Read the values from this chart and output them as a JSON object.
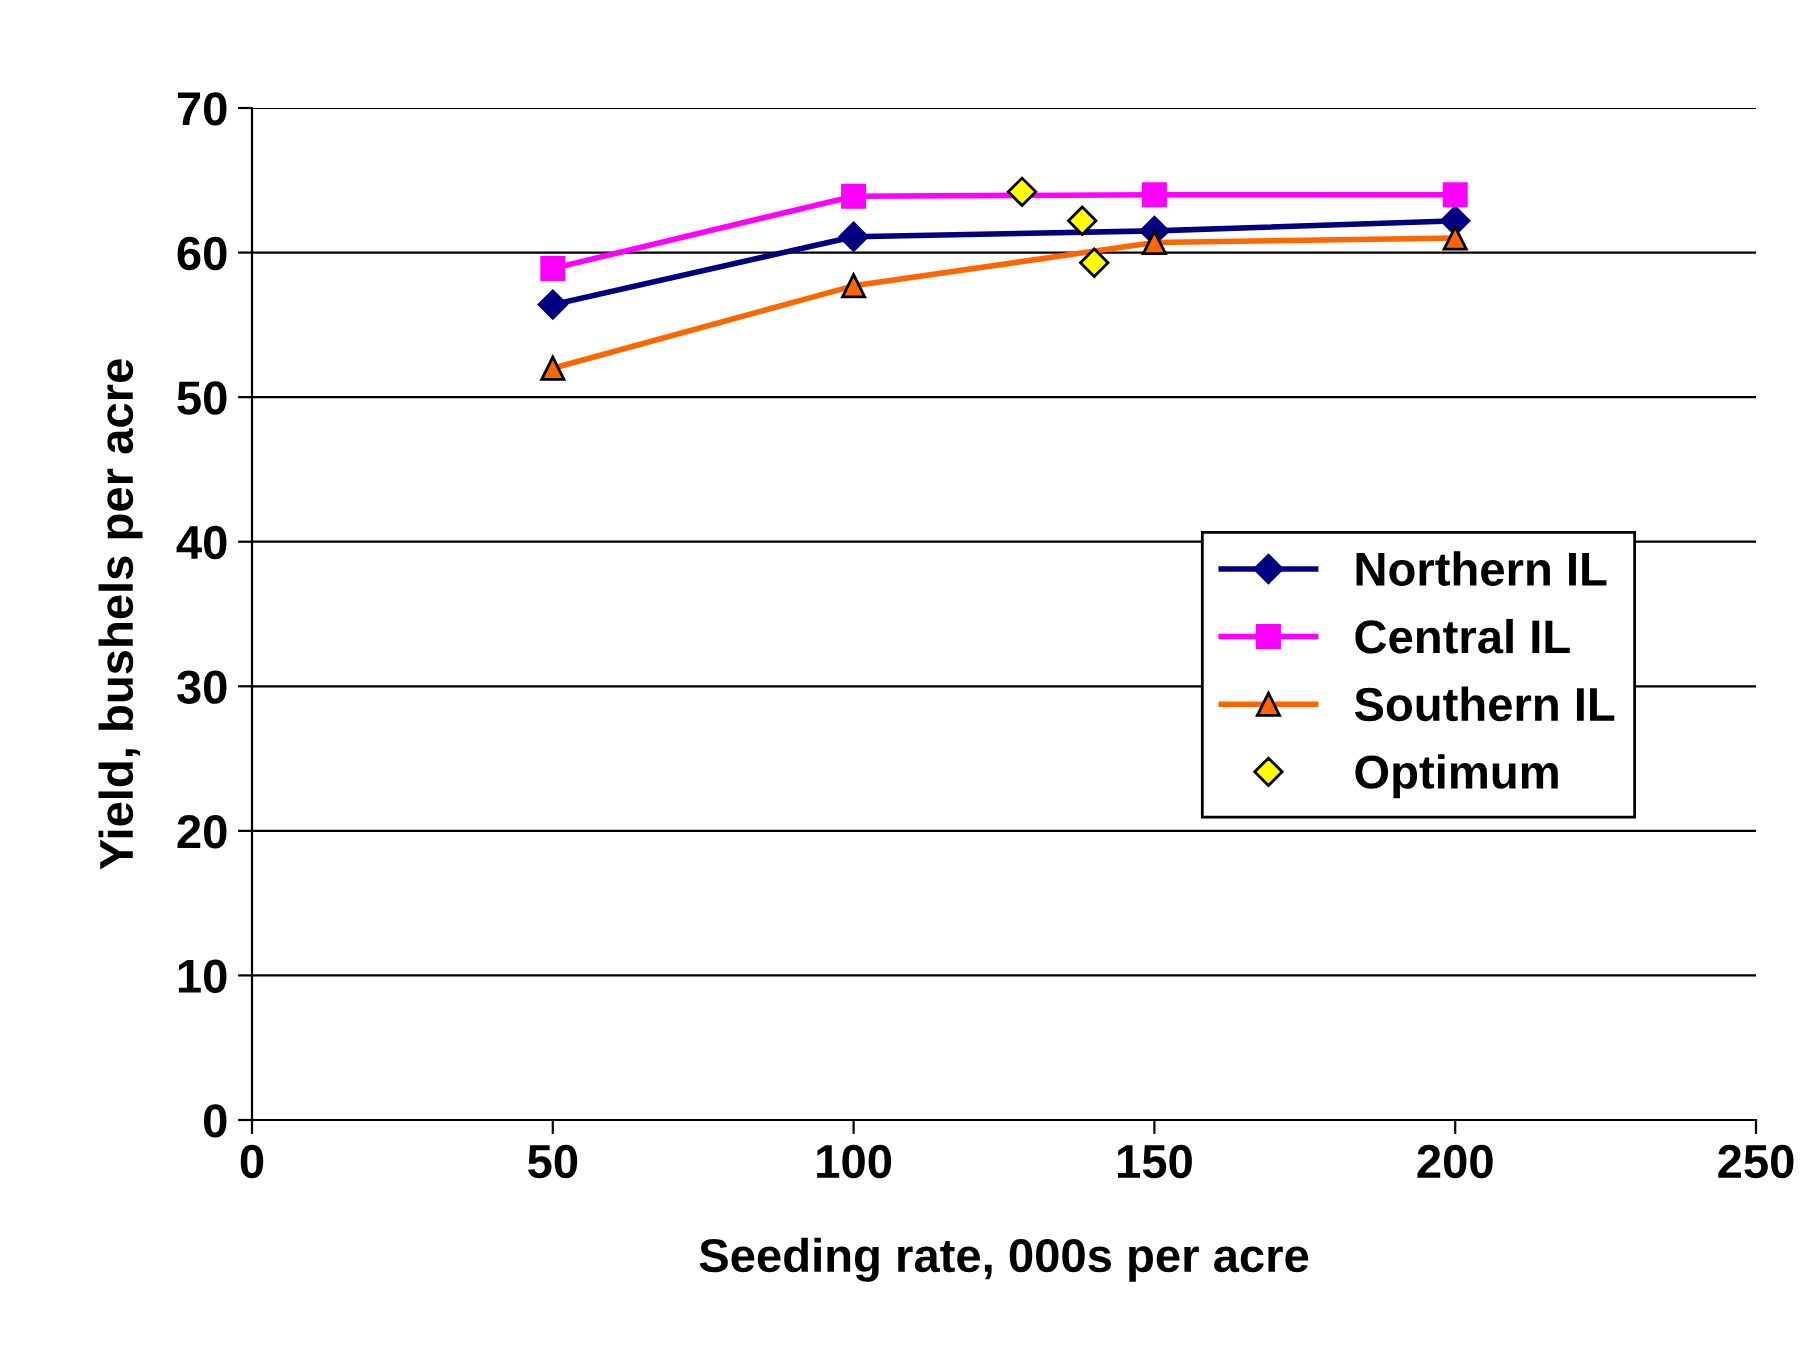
{
  "chart_data": {
    "type": "line",
    "xlabel": "Seeding rate, 000s per acre",
    "ylabel": "Yield, bushels per acre",
    "xlim": [
      0,
      250
    ],
    "xticks": [
      0,
      50,
      100,
      150,
      200,
      250
    ],
    "ylim": [
      0,
      70
    ],
    "yticks": [
      0,
      10,
      20,
      30,
      40,
      50,
      60,
      70
    ],
    "grid": "y",
    "legend": "right",
    "series": [
      {
        "name": "Northern IL",
        "color": "#000080",
        "marker": "diamond",
        "x": [
          50,
          100,
          150,
          200
        ],
        "values": [
          56.4,
          61.1,
          61.5,
          62.2
        ]
      },
      {
        "name": "Central IL",
        "color": "#ff00ff",
        "marker": "square",
        "x": [
          50,
          100,
          150,
          200
        ],
        "values": [
          58.9,
          63.9,
          64.0,
          64.0
        ]
      },
      {
        "name": "Southern IL",
        "color": "#ff6600",
        "marker": "triangle",
        "x": [
          50,
          100,
          150,
          200
        ],
        "values": [
          52.0,
          57.7,
          60.7,
          61.0
        ]
      },
      {
        "name": "Optimum",
        "type": "scatter",
        "color": "#ffff00",
        "marker": "diamond",
        "x": [
          128,
          138,
          140
        ],
        "values": [
          64.2,
          62.2,
          59.3
        ]
      }
    ]
  }
}
